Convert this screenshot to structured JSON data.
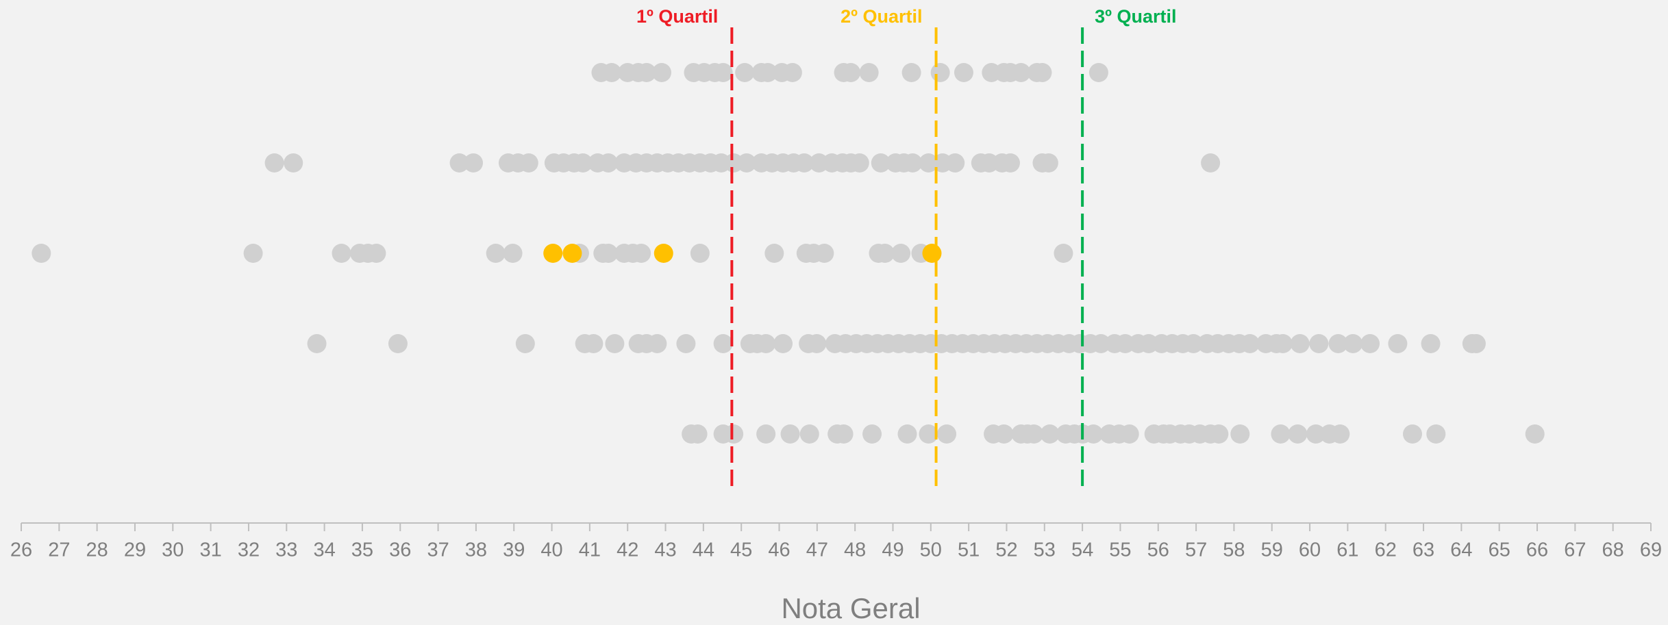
{
  "chart_data": {
    "type": "strip",
    "xlabel": "Nota Geral",
    "xlim": [
      26,
      69
    ],
    "xticks": [
      26,
      27,
      28,
      29,
      30,
      31,
      32,
      33,
      34,
      35,
      36,
      37,
      38,
      39,
      40,
      41,
      42,
      43,
      44,
      45,
      46,
      47,
      48,
      49,
      50,
      51,
      52,
      53,
      54,
      55,
      56,
      57,
      58,
      59,
      60,
      61,
      62,
      63,
      64,
      65,
      66,
      67,
      68,
      69
    ],
    "color": "#d0d0d0",
    "rows": [
      {
        "values": [
          41.3,
          41.58,
          42.0,
          42.28,
          42.5,
          42.9,
          43.74,
          44.02,
          44.3,
          44.52,
          45.09,
          45.53,
          45.7,
          46.07,
          46.35,
          47.7,
          47.89,
          48.37,
          49.49,
          50.25,
          50.87,
          51.6,
          51.93,
          52.1,
          52.38,
          52.8,
          52.94,
          54.43
        ]
      },
      {
        "values": [
          32.68,
          33.18,
          37.56,
          37.93,
          38.85,
          39.11,
          39.39,
          40.06,
          40.31,
          40.59,
          40.82,
          41.21,
          41.49,
          41.91,
          42.22,
          42.5,
          42.78,
          43.06,
          43.34,
          43.63,
          43.91,
          44.19,
          44.47,
          44.8,
          45.14,
          45.53,
          45.81,
          46.1,
          46.38,
          46.66,
          47.05,
          47.39,
          47.67,
          47.89,
          48.12,
          48.68,
          49.07,
          49.29,
          49.52,
          49.94,
          50.31,
          50.64,
          51.32,
          51.54,
          51.88,
          52.1,
          52.94,
          53.11,
          57.38
        ]
      },
      {
        "values": [
          26.53,
          32.12,
          34.45,
          34.93,
          35.15,
          35.37,
          38.52,
          38.97,
          40.73,
          41.35,
          41.49,
          41.91,
          42.14,
          42.36,
          43.91,
          45.87,
          46.71,
          46.91,
          47.19,
          48.62,
          48.79,
          49.21,
          49.74,
          53.5
        ],
        "highlight": {
          "color": "#ffc000",
          "values": [
            40.03,
            40.54,
            42.95,
            50.03
          ]
        }
      },
      {
        "values": [
          33.8,
          35.94,
          39.3,
          40.87,
          41.1,
          41.66,
          42.28,
          42.5,
          42.78,
          43.54,
          44.52,
          45.23,
          45.42,
          45.65,
          46.1,
          46.77,
          46.99,
          47.47,
          47.75,
          48.03,
          48.31,
          48.59,
          48.87,
          49.15,
          49.44,
          49.72,
          50.0,
          50.28,
          50.56,
          50.84,
          51.12,
          51.4,
          51.68,
          51.96,
          52.24,
          52.52,
          52.8,
          53.08,
          53.36,
          53.65,
          53.93,
          54.21,
          54.49,
          54.85,
          55.13,
          55.47,
          55.75,
          56.09,
          56.37,
          56.65,
          56.93,
          57.29,
          57.57,
          57.86,
          58.14,
          58.42,
          58.84,
          59.12,
          59.29,
          59.74,
          60.24,
          60.75,
          61.14,
          61.59,
          62.32,
          63.19,
          64.28,
          64.39
        ]
      },
      {
        "values": [
          43.68,
          43.85,
          44.52,
          44.8,
          45.65,
          46.29,
          46.8,
          47.53,
          47.7,
          48.45,
          49.38,
          49.94,
          50.42,
          51.65,
          51.93,
          52.38,
          52.55,
          52.72,
          53.14,
          53.56,
          53.79,
          54.01,
          54.29,
          54.71,
          54.97,
          55.24,
          55.89,
          56.14,
          56.31,
          56.59,
          56.82,
          57.1,
          57.38,
          57.6,
          58.16,
          59.23,
          59.68,
          60.16,
          60.52,
          60.8,
          62.71,
          63.33,
          65.94
        ]
      }
    ],
    "annotations": [
      {
        "label": "1º Quartil",
        "value": 44.75,
        "color": "#ee1c25"
      },
      {
        "label": "2º Quartil",
        "value": 50.14,
        "color": "#ffc000"
      },
      {
        "label": "3º Quartil",
        "value": 54.0,
        "color": "#00b050"
      }
    ]
  }
}
